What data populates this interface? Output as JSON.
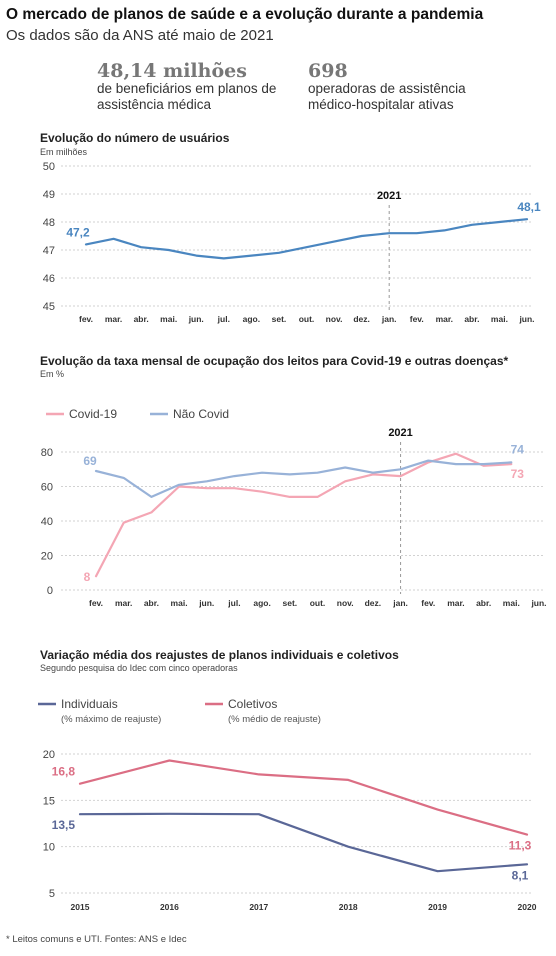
{
  "header": {
    "title": "O mercado de planos de saúde e a evolução durante a pandemia",
    "subtitle": "Os dados são da ANS até maio de 2021"
  },
  "stats": [
    {
      "value": "48,14 milhões",
      "desc": "de beneficiários em planos de assistência médica"
    },
    {
      "value": "698",
      "desc": "operadoras de assistência médico-hospitalar ativas"
    }
  ],
  "colors": {
    "users": "#4a86c0",
    "covid": "#f4a6b4",
    "non_covid": "#98b2d8",
    "individual": "#5a6797",
    "collective": "#db6e84",
    "grid": "#d2d2d2"
  },
  "chart_data": [
    {
      "type": "line",
      "title": "Evolução do número de usuários",
      "unit": "Em milhões",
      "categories": [
        "fev.",
        "mar.",
        "abr.",
        "mai.",
        "jun.",
        "jul.",
        "ago.",
        "set.",
        "out.",
        "nov.",
        "dez.",
        "jan.",
        "fev.",
        "mar.",
        "abr.",
        "mai.",
        "jun."
      ],
      "series": [
        {
          "values": [
            47.2,
            47.4,
            47.1,
            47.0,
            46.8,
            46.7,
            46.8,
            46.9,
            47.1,
            47.3,
            47.5,
            47.6,
            47.6,
            47.7,
            47.9,
            48.0,
            48.1
          ]
        }
      ],
      "yticks": [
        "45",
        "46",
        "47",
        "48",
        "49",
        "50"
      ],
      "ylim": [
        45,
        50
      ],
      "year_marker": {
        "label": "2021",
        "index": 11
      },
      "data_labels": [
        {
          "index": 0,
          "text": "47,2"
        },
        {
          "index": 16,
          "text": "48,1"
        }
      ],
      "grid": true
    },
    {
      "type": "line",
      "title": "Evolução da taxa mensal de ocupação dos leitos para Covid-19 e outras doenças*",
      "unit": "Em %",
      "categories": [
        "fev.",
        "mar.",
        "abr.",
        "mai.",
        "jun.",
        "jul.",
        "ago.",
        "set.",
        "out.",
        "nov.",
        "dez.",
        "jan.",
        "fev.",
        "mar.",
        "abr.",
        "mai.",
        "jun."
      ],
      "series": [
        {
          "name": "Covid-19",
          "values": [
            8,
            39,
            45,
            60,
            59,
            59,
            57,
            54,
            54,
            63,
            67,
            66,
            74,
            79,
            72,
            73,
            null
          ]
        },
        {
          "name": "Não Covid",
          "values": [
            69,
            65,
            54,
            61,
            63,
            66,
            68,
            67,
            68,
            71,
            68,
            70,
            75,
            73,
            73,
            74,
            null
          ]
        }
      ],
      "yticks": [
        "0",
        "20",
        "40",
        "60",
        "80"
      ],
      "ylim": [
        0,
        80
      ],
      "year_marker": {
        "label": "2021",
        "index": 11
      },
      "data_labels": [
        {
          "series": 0,
          "index": 0,
          "text": "8"
        },
        {
          "series": 1,
          "index": 0,
          "text": "69"
        },
        {
          "series": 1,
          "index": 15,
          "text": "74"
        },
        {
          "series": 0,
          "index": 15,
          "text": "73"
        }
      ],
      "legend": "top-left",
      "grid": true
    },
    {
      "type": "line",
      "title": "Variação média dos reajustes de planos individuais e coletivos",
      "unit": "Segundo pesquisa do Idec com cinco operadoras",
      "categories": [
        "2015",
        "2016",
        "2017",
        "2018",
        "2019",
        "2020"
      ],
      "series": [
        {
          "name": "Individuais",
          "note": "(% máximo de reajuste)",
          "values": [
            13.5,
            13.55,
            13.5,
            10.0,
            7.35,
            8.1
          ]
        },
        {
          "name": "Coletivos",
          "note": "(% médio de reajuste)",
          "values": [
            16.8,
            19.3,
            17.8,
            17.2,
            14.0,
            11.3
          ]
        }
      ],
      "yticks": [
        "5",
        "10",
        "15",
        "20"
      ],
      "ylim": [
        5,
        20
      ],
      "data_labels": [
        {
          "series": 1,
          "index": 0,
          "text": "16,8"
        },
        {
          "series": 0,
          "index": 0,
          "text": "13,5"
        },
        {
          "series": 1,
          "index": 5,
          "text": "11,3"
        },
        {
          "series": 0,
          "index": 5,
          "text": "8,1"
        }
      ],
      "legend": "top-left",
      "grid": true
    }
  ],
  "footnote": "* Leitos comuns e UTI. Fontes: ANS e Idec"
}
